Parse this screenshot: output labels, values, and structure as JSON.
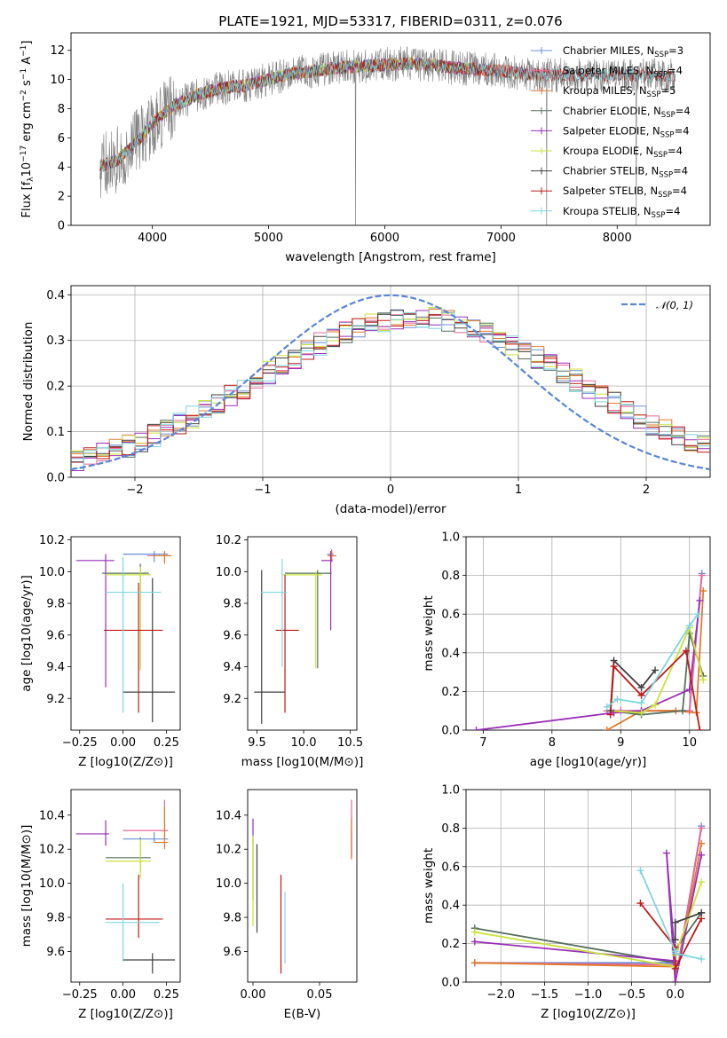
{
  "figure": {
    "title": "PLATE=1921, MJD=53317, FIBERID=0311, z=0.076"
  },
  "models": [
    {
      "name": "Chabrier MILES",
      "nssp": "3",
      "color": "#6a8fd6"
    },
    {
      "name": "Salpeter MILES",
      "nssp": "4",
      "color": "#e6679b"
    },
    {
      "name": "Kroupa MILES",
      "nssp": "5",
      "color": "#e3792b"
    },
    {
      "name": "Chabrier ELODIE",
      "nssp": "4",
      "color": "#55705e"
    },
    {
      "name": "Salpeter ELODIE",
      "nssp": "4",
      "color": "#9a2fb8"
    },
    {
      "name": "Kroupa ELODIE",
      "nssp": "4",
      "color": "#c9e23a"
    },
    {
      "name": "Chabrier STELIB",
      "nssp": "4",
      "color": "#404040"
    },
    {
      "name": "Salpeter STELIB",
      "nssp": "4",
      "color": "#c21a1a"
    },
    {
      "name": "Kroupa STELIB",
      "nssp": "4",
      "color": "#7fd6de"
    }
  ],
  "chart_data": [
    {
      "id": "spectrum",
      "type": "line",
      "title": "PLATE=1921, MJD=53317, FIBERID=0311, z=0.076",
      "xlabel": "wavelength [Angstrom, rest frame]",
      "ylabel": "Flux [f_λ 10^-17 erg cm^-2 s^-1 A^-1]",
      "xlim": [
        3300,
        8800
      ],
      "ylim": [
        0,
        13.2
      ],
      "xticks": [
        4000,
        5000,
        6000,
        7000,
        8000
      ],
      "yticks": [
        0,
        2,
        4,
        6,
        8,
        10,
        12
      ],
      "grid": false,
      "legend": "right",
      "data_color": "#808080",
      "continuum": {
        "x": [
          3550,
          3700,
          3800,
          3900,
          4000,
          4100,
          4200,
          4300,
          4400,
          4600,
          4800,
          5000,
          5200,
          5400,
          5600,
          5800,
          6000,
          6200,
          6400,
          6600,
          6800,
          7000,
          7200,
          7400
        ],
        "y": [
          4.0,
          4.5,
          5.2,
          6.0,
          7.0,
          7.7,
          8.3,
          8.6,
          9.0,
          9.4,
          9.6,
          10.0,
          10.4,
          10.6,
          10.8,
          10.9,
          11.0,
          11.1,
          11.0,
          10.8,
          10.7,
          10.6,
          10.4,
          10.3
        ]
      },
      "data_range": [
        3550,
        8500
      ],
      "model_ranges": {
        "MILES": [
          3550,
          7410
        ],
        "ELODIE": [
          3550,
          6800
        ],
        "STELIB": [
          3550,
          8500
        ]
      }
    },
    {
      "id": "residuals",
      "type": "line",
      "xlabel": "(data-model)/error",
      "ylabel": "Normed distribution",
      "xlim": [
        -2.5,
        2.5
      ],
      "ylim": [
        0,
        0.42
      ],
      "xticks": [
        -2,
        -1,
        0,
        1,
        2
      ],
      "yticks": [
        0.0,
        0.1,
        0.2,
        0.3,
        0.4
      ],
      "grid": true,
      "legend": "top-right",
      "reference": {
        "name": "𝒩(0, 1)",
        "color": "#5b86d6",
        "style": "dashed"
      },
      "bin_width": 0.1
    },
    {
      "id": "age_vs_Z",
      "type": "scatter",
      "xlabel": "Z [log10(Z/Z⊙)]",
      "ylabel": "age [log10(age/yr)]",
      "xlim": [
        -0.3,
        0.33
      ],
      "ylim": [
        9.0,
        10.22
      ],
      "xticks": [
        -0.25,
        0.0,
        0.25
      ],
      "yticks": [
        9.2,
        9.4,
        9.6,
        9.8,
        10.0,
        10.2
      ],
      "grid": false,
      "points": [
        {
          "model": 0,
          "x": 0.18,
          "xerr": [
            0.18,
            0.08
          ],
          "y": 10.11,
          "yerr": [
            0.05,
            0.02
          ]
        },
        {
          "model": 1,
          "x": 0.24,
          "xerr": [
            0.1,
            0.03
          ],
          "y": 10.1,
          "yerr": [
            0.04,
            0.03
          ]
        },
        {
          "model": 2,
          "x": 0.24,
          "xerr": [
            0.07,
            0.04
          ],
          "y": 10.1,
          "yerr": [
            0.05,
            0.03
          ]
        },
        {
          "model": 3,
          "x": 0.1,
          "xerr": [
            0.22,
            0.05
          ],
          "y": 9.99,
          "yerr": [
            0.6,
            0.06
          ]
        },
        {
          "model": 4,
          "x": -0.1,
          "xerr": [
            0.17,
            0.05
          ],
          "y": 10.07,
          "yerr": [
            0.8,
            0.04
          ]
        },
        {
          "model": 5,
          "x": 0.1,
          "xerr": [
            0.2,
            0.06
          ],
          "y": 9.98,
          "yerr": [
            0.6,
            0.05
          ]
        },
        {
          "model": 6,
          "x": 0.17,
          "xerr": [
            0.17,
            0.13
          ],
          "y": 9.24,
          "yerr": [
            0.19,
            0.72
          ]
        },
        {
          "model": 7,
          "x": 0.09,
          "xerr": [
            0.2,
            0.14
          ],
          "y": 9.63,
          "yerr": [
            0.52,
            0.3
          ]
        },
        {
          "model": 8,
          "x": 0.0,
          "xerr": [
            0.1,
            0.22
          ],
          "y": 9.87,
          "yerr": [
            0.76,
            0.22
          ]
        }
      ]
    },
    {
      "id": "age_vs_mass",
      "type": "scatter",
      "xlabel": "mass [log10(M/M⊙)]",
      "ylabel": "",
      "xlim": [
        9.4,
        10.57
      ],
      "ylim": [
        9.0,
        10.22
      ],
      "xticks": [
        9.5,
        10.0,
        10.5
      ],
      "yticks": [
        9.2,
        9.4,
        9.6,
        9.8,
        10.0,
        10.2
      ],
      "grid": false,
      "points": [
        {
          "model": 0,
          "x": 10.3,
          "xerr": [
            0.05,
            0.02
          ],
          "y": 10.11,
          "yerr": [
            0.04,
            0.02
          ]
        },
        {
          "model": 1,
          "x": 10.3,
          "xerr": [
            0.04,
            0.05
          ],
          "y": 10.1,
          "yerr": [
            0.04,
            0.04
          ]
        },
        {
          "model": 2,
          "x": 10.3,
          "xerr": [
            0.04,
            0.05
          ],
          "y": 10.1,
          "yerr": [
            0.03,
            0.03
          ]
        },
        {
          "model": 3,
          "x": 10.15,
          "xerr": [
            0.35,
            0.15
          ],
          "y": 9.99,
          "yerr": [
            0.6,
            0.02
          ]
        },
        {
          "model": 4,
          "x": 10.29,
          "xerr": [
            0.1,
            0.02
          ],
          "y": 10.07,
          "yerr": [
            0.44,
            0.06
          ]
        },
        {
          "model": 5,
          "x": 10.13,
          "xerr": [
            0.35,
            0.07
          ],
          "y": 9.98,
          "yerr": [
            0.59,
            0.02
          ]
        },
        {
          "model": 6,
          "x": 9.55,
          "xerr": [
            0.08,
            0.25
          ],
          "y": 9.24,
          "yerr": [
            0.2,
            0.77
          ]
        },
        {
          "model": 7,
          "x": 9.8,
          "xerr": [
            0.1,
            0.15
          ],
          "y": 9.63,
          "yerr": [
            0.52,
            0.35
          ]
        },
        {
          "model": 8,
          "x": 9.77,
          "xerr": [
            0.23,
            0.05
          ],
          "y": 9.87,
          "yerr": [
            0.47,
            0.21
          ]
        }
      ]
    },
    {
      "id": "weight_vs_age",
      "type": "line",
      "xlabel": "age [log10(age/yr)]",
      "ylabel": "mass weight",
      "xlim": [
        6.75,
        10.3
      ],
      "ylim": [
        0.0,
        1.0
      ],
      "xticks": [
        7,
        8,
        9,
        10
      ],
      "yticks": [
        0.0,
        0.2,
        0.4,
        0.6,
        0.8,
        1.0
      ],
      "grid": true,
      "series": [
        {
          "model": 0,
          "x": [
            8.8,
            9.0,
            9.3,
            10.0,
            10.18
          ],
          "y": [
            0.1,
            0.1,
            0.1,
            0.1,
            0.81
          ]
        },
        {
          "model": 1,
          "x": [
            8.8,
            9.0,
            9.3,
            10.0,
            10.18
          ],
          "y": [
            0.1,
            0.1,
            0.1,
            0.1,
            0.8
          ]
        },
        {
          "model": 2,
          "x": [
            8.8,
            9.3,
            9.8,
            10.1,
            10.2
          ],
          "y": [
            0.0,
            0.1,
            0.1,
            0.09,
            0.72
          ]
        },
        {
          "model": 3,
          "x": [
            8.85,
            9.3,
            9.9,
            10.0,
            10.2
          ],
          "y": [
            0.1,
            0.08,
            0.1,
            0.5,
            0.28
          ]
        },
        {
          "model": 4,
          "x": [
            6.9,
            8.9,
            9.3,
            10.0,
            10.15
          ],
          "y": [
            0.0,
            0.09,
            0.1,
            0.21,
            0.67
          ]
        },
        {
          "model": 5,
          "x": [
            8.85,
            9.3,
            9.5,
            10.0,
            10.2
          ],
          "y": [
            0.1,
            0.09,
            0.13,
            0.53,
            0.26
          ]
        },
        {
          "model": 6,
          "x": [
            8.85,
            8.9,
            9.3,
            9.5
          ],
          "y": [
            0.1,
            0.36,
            0.22,
            0.31
          ]
        },
        {
          "model": 7,
          "x": [
            8.85,
            8.9,
            9.3,
            9.95,
            10.15
          ],
          "y": [
            0.08,
            0.33,
            0.18,
            0.41,
            0.0
          ]
        },
        {
          "model": 8,
          "x": [
            8.8,
            8.95,
            9.3,
            10.0,
            10.12
          ],
          "y": [
            0.12,
            0.16,
            0.14,
            0.54,
            0.6
          ]
        }
      ]
    },
    {
      "id": "mass_vs_Z",
      "type": "scatter",
      "xlabel": "Z [log10(Z/Z⊙)]",
      "ylabel": "mass [log10(M/M⊙)]",
      "xlim": [
        -0.3,
        0.33
      ],
      "ylim": [
        9.42,
        10.55
      ],
      "xticks": [
        -0.25,
        0.0,
        0.25
      ],
      "yticks": [
        9.6,
        9.8,
        10.0,
        10.2,
        10.4
      ],
      "grid": false,
      "points": [
        {
          "model": 0,
          "x": 0.18,
          "xerr": [
            0.18,
            0.08
          ],
          "y": 10.26,
          "yerr": [
            0.02,
            0.04
          ]
        },
        {
          "model": 1,
          "x": 0.24,
          "xerr": [
            0.24,
            0.02
          ],
          "y": 10.31,
          "yerr": [
            0.05,
            0.18
          ]
        },
        {
          "model": 2,
          "x": 0.24,
          "xerr": [
            0.06,
            0.02
          ],
          "y": 10.24,
          "yerr": [
            0.04,
            0.21
          ]
        },
        {
          "model": 3,
          "x": 0.1,
          "xerr": [
            0.2,
            0.06
          ],
          "y": 10.15,
          "yerr": [
            0.08,
            0.12
          ]
        },
        {
          "model": 4,
          "x": -0.1,
          "xerr": [
            0.17,
            0.02
          ],
          "y": 10.29,
          "yerr": [
            0.07,
            0.08
          ]
        },
        {
          "model": 5,
          "x": 0.1,
          "xerr": [
            0.2,
            0.06
          ],
          "y": 10.13,
          "yerr": [
            0.1,
            0.13
          ]
        },
        {
          "model": 6,
          "x": 0.17,
          "xerr": [
            0.17,
            0.13
          ],
          "y": 9.55,
          "yerr": [
            0.08,
            0.04
          ]
        },
        {
          "model": 7,
          "x": 0.09,
          "xerr": [
            0.19,
            0.14
          ],
          "y": 9.79,
          "yerr": [
            0.11,
            0.26
          ]
        },
        {
          "model": 8,
          "x": 0.0,
          "xerr": [
            0.1,
            0.21
          ],
          "y": 9.77,
          "yerr": [
            0.23,
            0.23
          ]
        }
      ]
    },
    {
      "id": "mass_vs_ebv",
      "type": "scatter",
      "xlabel": "E(B-V)",
      "ylabel": "",
      "xlim": [
        -0.004,
        0.078
      ],
      "ylim": [
        9.42,
        10.55
      ],
      "xticks": [
        0.0,
        0.05
      ],
      "yticks": [
        9.6,
        9.8,
        10.0,
        10.2,
        10.4
      ],
      "grid": false,
      "points": [
        {
          "model": 0,
          "x": 0.074,
          "y": 10.26,
          "yerr": [
            0.1,
            0.05
          ]
        },
        {
          "model": 1,
          "x": 0.074,
          "y": 10.35,
          "yerr": [
            0.2,
            0.14
          ]
        },
        {
          "model": 2,
          "x": 0.074,
          "y": 10.24,
          "yerr": [
            0.1,
            0.14
          ]
        },
        {
          "model": 3,
          "x": 0.0,
          "y": 10.1,
          "yerr": [
            0.2,
            0.15
          ]
        },
        {
          "model": 4,
          "x": 0.0,
          "y": 10.3,
          "yerr": [
            0.06,
            0.08
          ]
        },
        {
          "model": 5,
          "x": 0.0,
          "y": 10.05,
          "yerr": [
            0.3,
            0.23
          ]
        },
        {
          "model": 6,
          "x": 0.003,
          "y": 9.9,
          "yerr": [
            0.19,
            0.33
          ]
        },
        {
          "model": 7,
          "x": 0.021,
          "y": 9.75,
          "yerr": [
            0.28,
            0.3
          ]
        },
        {
          "model": 8,
          "x": 0.024,
          "y": 9.75,
          "yerr": [
            0.22,
            0.2
          ]
        }
      ]
    },
    {
      "id": "weight_vs_Z",
      "type": "line",
      "xlabel": "Z [log10(Z/Z⊙)]",
      "ylabel": "mass weight",
      "xlim": [
        -2.4,
        0.4
      ],
      "ylim": [
        0.0,
        1.0
      ],
      "xticks": [
        -2.0,
        -1.5,
        -1.0,
        -0.5,
        0.0
      ],
      "yticks": [
        0.0,
        0.2,
        0.4,
        0.6,
        0.8,
        1.0
      ],
      "grid": true,
      "series": [
        {
          "model": 0,
          "x": [
            -2.3,
            0.0,
            0.0,
            0.3
          ],
          "y": [
            0.1,
            0.1,
            0.0,
            0.81
          ]
        },
        {
          "model": 1,
          "x": [
            -2.3,
            0.0,
            0.0,
            0.3
          ],
          "y": [
            0.1,
            0.09,
            0.0,
            0.8
          ]
        },
        {
          "model": 2,
          "x": [
            -2.3,
            0.0,
            0.0,
            0.3
          ],
          "y": [
            0.1,
            0.08,
            0.0,
            0.72
          ]
        },
        {
          "model": 3,
          "x": [
            -2.3,
            0.0,
            0.0,
            0.3
          ],
          "y": [
            0.28,
            0.1,
            0.17,
            0.36
          ]
        },
        {
          "model": 4,
          "x": [
            -2.3,
            0.0,
            -0.1,
            0.0,
            0.3
          ],
          "y": [
            0.21,
            0.11,
            0.67,
            0.0,
            0.66
          ]
        },
        {
          "model": 5,
          "x": [
            -2.3,
            0.0,
            0.0,
            0.3
          ],
          "y": [
            0.26,
            0.08,
            0.14,
            0.52
          ]
        },
        {
          "model": 6,
          "x": [
            0.0,
            0.0,
            0.3
          ],
          "y": [
            0.22,
            0.31,
            0.36
          ]
        },
        {
          "model": 7,
          "x": [
            -0.4,
            0.0,
            0.0,
            0.3
          ],
          "y": [
            0.41,
            0.18,
            0.07,
            0.33
          ]
        },
        {
          "model": 8,
          "x": [
            -0.4,
            0.0,
            0.0,
            0.3
          ],
          "y": [
            0.58,
            0.16,
            0.15,
            0.12
          ]
        }
      ]
    }
  ]
}
